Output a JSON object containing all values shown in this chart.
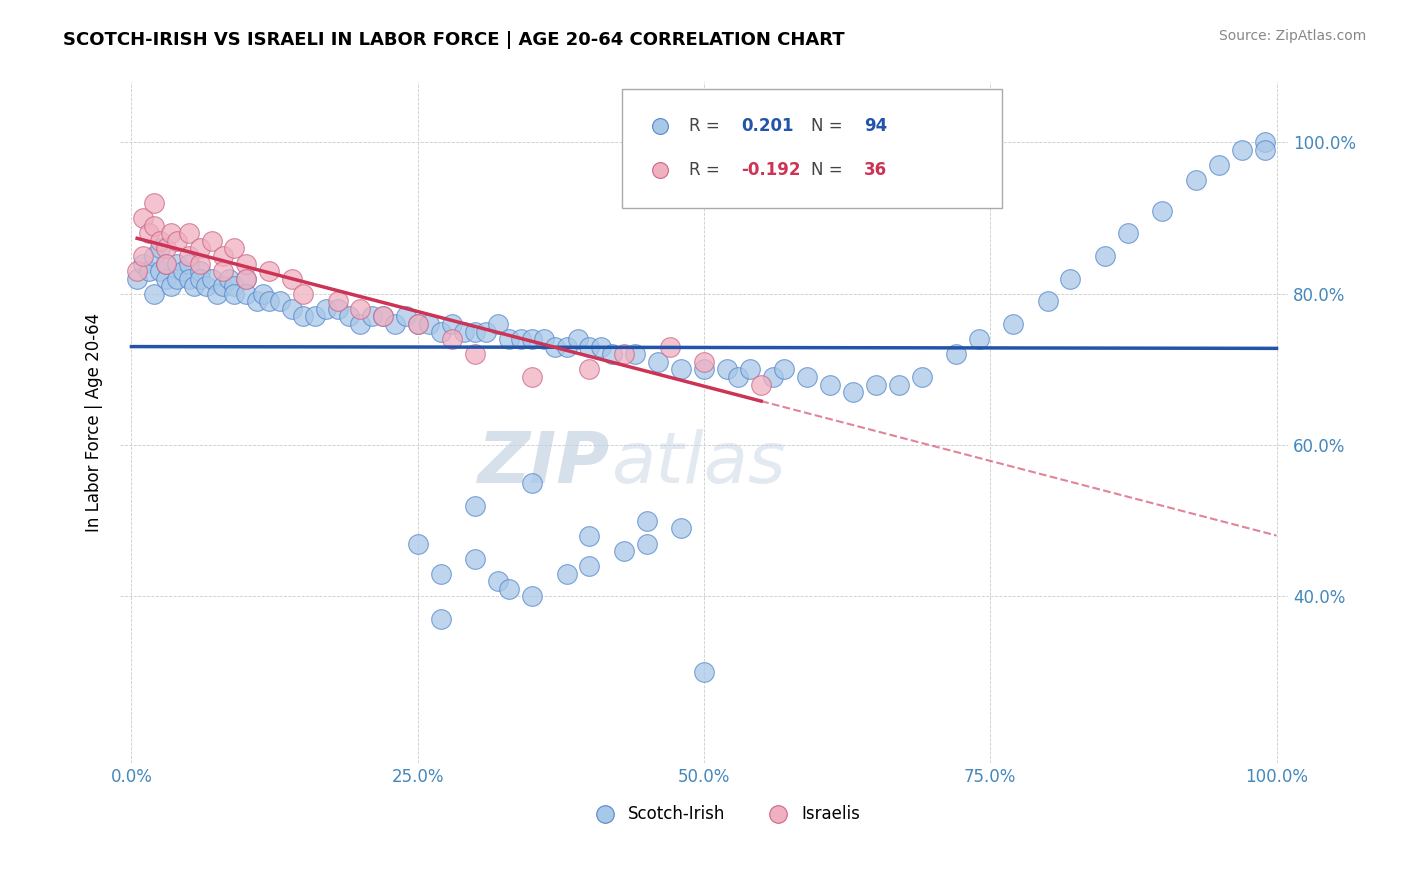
{
  "title": "SCOTCH-IRISH VS ISRAELI IN LABOR FORCE | AGE 20-64 CORRELATION CHART",
  "source": "Source: ZipAtlas.com",
  "ylabel": "In Labor Force | Age 20-64",
  "xlim": [
    -0.01,
    1.01
  ],
  "ylim": [
    0.18,
    1.08
  ],
  "xticks": [
    0.0,
    0.25,
    0.5,
    0.75,
    1.0
  ],
  "xtick_labels": [
    "0.0%",
    "25.0%",
    "50.0%",
    "75.0%",
    "100.0%"
  ],
  "yticks": [
    0.4,
    0.6,
    0.8,
    1.0
  ],
  "ytick_labels": [
    "40.0%",
    "60.0%",
    "80.0%",
    "100.0%"
  ],
  "blue_fill": "#A8C8E8",
  "blue_edge": "#5588CC",
  "pink_fill": "#F0B0C0",
  "pink_edge": "#CC6688",
  "trend_blue": "#2255AA",
  "trend_pink": "#CC3355",
  "R_blue": "0.201",
  "N_blue": "94",
  "R_pink": "-0.192",
  "N_pink": "36",
  "watermark_zip": "ZIP",
  "watermark_atlas": "atlas",
  "legend_label_blue": "Scotch-Irish",
  "legend_label_pink": "Israelis",
  "si_x": [
    0.005,
    0.01,
    0.015,
    0.02,
    0.02,
    0.025,
    0.025,
    0.03,
    0.03,
    0.035,
    0.04,
    0.04,
    0.045,
    0.05,
    0.05,
    0.055,
    0.06,
    0.06,
    0.065,
    0.07,
    0.075,
    0.08,
    0.085,
    0.09,
    0.09,
    0.1,
    0.1,
    0.11,
    0.115,
    0.12,
    0.13,
    0.14,
    0.15,
    0.16,
    0.17,
    0.18,
    0.19,
    0.2,
    0.21,
    0.22,
    0.23,
    0.24,
    0.25,
    0.26,
    0.27,
    0.28,
    0.29,
    0.3,
    0.31,
    0.32,
    0.33,
    0.34,
    0.35,
    0.36,
    0.37,
    0.38,
    0.39,
    0.4,
    0.41,
    0.42,
    0.44,
    0.46,
    0.48,
    0.5,
    0.52,
    0.53,
    0.54,
    0.56,
    0.57,
    0.59,
    0.61,
    0.63,
    0.65,
    0.67,
    0.69,
    0.72,
    0.74,
    0.77,
    0.8,
    0.82,
    0.85,
    0.87,
    0.9,
    0.93,
    0.95,
    0.97,
    0.99,
    0.99,
    0.3,
    0.35,
    0.4,
    0.45,
    0.27,
    0.32
  ],
  "si_y": [
    0.82,
    0.84,
    0.83,
    0.85,
    0.8,
    0.83,
    0.86,
    0.82,
    0.84,
    0.81,
    0.84,
    0.82,
    0.83,
    0.84,
    0.82,
    0.81,
    0.83,
    0.82,
    0.81,
    0.82,
    0.8,
    0.81,
    0.82,
    0.81,
    0.8,
    0.82,
    0.8,
    0.79,
    0.8,
    0.79,
    0.79,
    0.78,
    0.77,
    0.77,
    0.78,
    0.78,
    0.77,
    0.76,
    0.77,
    0.77,
    0.76,
    0.77,
    0.76,
    0.76,
    0.75,
    0.76,
    0.75,
    0.75,
    0.75,
    0.76,
    0.74,
    0.74,
    0.74,
    0.74,
    0.73,
    0.73,
    0.74,
    0.73,
    0.73,
    0.72,
    0.72,
    0.71,
    0.7,
    0.7,
    0.7,
    0.69,
    0.7,
    0.69,
    0.7,
    0.69,
    0.68,
    0.67,
    0.68,
    0.68,
    0.69,
    0.72,
    0.74,
    0.76,
    0.79,
    0.82,
    0.85,
    0.88,
    0.91,
    0.95,
    0.97,
    0.99,
    1.0,
    0.99,
    0.52,
    0.55,
    0.48,
    0.5,
    0.37,
    0.42
  ],
  "si_x_low": [
    0.25,
    0.27,
    0.3,
    0.33,
    0.35,
    0.38,
    0.4,
    0.43,
    0.45,
    0.48,
    0.5
  ],
  "si_y_low": [
    0.47,
    0.43,
    0.45,
    0.41,
    0.4,
    0.43,
    0.44,
    0.46,
    0.47,
    0.49,
    0.3
  ],
  "is_x": [
    0.005,
    0.01,
    0.01,
    0.015,
    0.02,
    0.02,
    0.025,
    0.03,
    0.03,
    0.035,
    0.04,
    0.05,
    0.05,
    0.06,
    0.07,
    0.08,
    0.09,
    0.1,
    0.12,
    0.14,
    0.06,
    0.08,
    0.1,
    0.15,
    0.18,
    0.2,
    0.22,
    0.25,
    0.28,
    0.3,
    0.35,
    0.4,
    0.43,
    0.47,
    0.5,
    0.55
  ],
  "is_y": [
    0.83,
    0.85,
    0.9,
    0.88,
    0.89,
    0.92,
    0.87,
    0.86,
    0.84,
    0.88,
    0.87,
    0.88,
    0.85,
    0.86,
    0.87,
    0.85,
    0.86,
    0.84,
    0.83,
    0.82,
    0.84,
    0.83,
    0.82,
    0.8,
    0.79,
    0.78,
    0.77,
    0.76,
    0.74,
    0.72,
    0.69,
    0.7,
    0.72,
    0.73,
    0.71,
    0.68
  ]
}
